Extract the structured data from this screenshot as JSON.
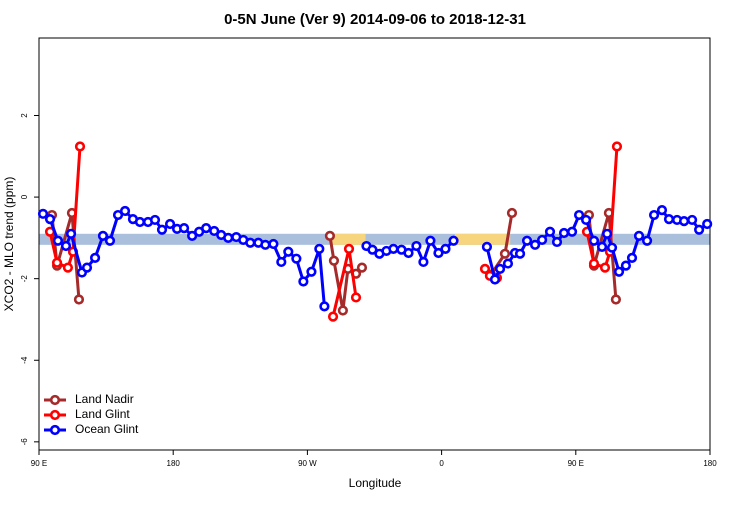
{
  "chart_data": {
    "type": "line",
    "title": "0-5N June (Ver 9)   2014-09-06 to 2018-12-31",
    "x_label": "Longitude",
    "y_label": "XCO2 - MLO trend (ppm)",
    "xlim": [
      90,
      540
    ],
    "xticks": [
      {
        "value": 90,
        "label": "90 E"
      },
      180,
      {
        "value": 270,
        "label": "90 W"
      },
      {
        "value": 360,
        "label": "0"
      },
      {
        "value": 450,
        "label": "90 E"
      },
      {
        "value": 540,
        "label": "180"
      }
    ],
    "ylim": [
      -6.2,
      3.9
    ],
    "yticks": [
      2,
      0,
      -2,
      -4,
      -6
    ],
    "legend": "bottom-left",
    "band": {
      "range": [
        -1.17,
        -0.9
      ],
      "color": "#a9bfdc"
    },
    "highlights": {
      "color": "#f7d57e",
      "ranges": [
        [
          285,
          309
        ],
        [
          369,
          406
        ]
      ]
    },
    "series": [
      {
        "name": "Land Nadir",
        "color": "#a52a2a",
        "x": [
          98.7,
          102.1,
          112.1,
          116.8,
          null,
          285.1,
          287.8,
          293.8,
          297.2,
          302.6,
          306.6,
          null,
          393.1,
          402.5,
          407.2,
          null,
          458.8,
          462.2,
          472.2,
          476.9
        ],
        "values": [
          -0.44,
          -1.68,
          -0.39,
          -2.51,
          null,
          -0.95,
          -1.56,
          -2.78,
          -1.76,
          -1.88,
          -1.73,
          null,
          -1.9,
          -1.39,
          -0.39,
          null,
          -0.44,
          -1.68,
          -0.39,
          -2.51
        ]
      },
      {
        "name": "Land Glint",
        "color": "#ff0000",
        "x": [
          97.4,
          102.1,
          109.4,
          112.8,
          117.5,
          null,
          287.2,
          297.9,
          302.6,
          null,
          389.1,
          392.4,
          397.1,
          null,
          457.5,
          462.2,
          469.6,
          472.9,
          477.6
        ],
        "values": [
          -0.85,
          -1.61,
          -1.73,
          -1.34,
          1.24,
          null,
          -2.93,
          -1.27,
          -2.46,
          null,
          -1.76,
          -1.93,
          -1.98,
          null,
          -0.85,
          -1.63,
          -1.73,
          -1.34,
          1.24
        ]
      },
      {
        "name": "Ocean Glint",
        "color": "#0000ff",
        "x": [
          92.7,
          97.4,
          102.7,
          108.1,
          111.5,
          118.8,
          122.2,
          127.6,
          132.9,
          137.6,
          143.0,
          147.7,
          153.0,
          157.7,
          163.1,
          167.8,
          172.5,
          177.9,
          182.6,
          187.3,
          192.7,
          197.4,
          202.1,
          207.5,
          212.2,
          216.9,
          222.3,
          227.0,
          231.7,
          237.1,
          241.8,
          247.2,
          252.5,
          257.2,
          262.6,
          267.3,
          272.7,
          278.0,
          281.4,
          null,
          309.6,
          313.6,
          318.3,
          323.0,
          327.7,
          333.1,
          337.8,
          343.1,
          347.8,
          352.5,
          357.9,
          362.6,
          368.0,
          null,
          390.4,
          395.8,
          399.2,
          404.5,
          409.2,
          412.6,
          417.3,
          422.7,
          427.4,
          432.7,
          437.4,
          442.1,
          447.5,
          452.2,
          456.9,
          462.2,
          467.6,
          471.0,
          474.3,
          479.0,
          483.6,
          487.7,
          492.4,
          497.8,
          502.5,
          507.8,
          512.5,
          517.9,
          522.6,
          528.0,
          532.7,
          538.1
        ],
        "values": [
          -0.41,
          -0.54,
          -1.07,
          -1.2,
          -0.9,
          -1.85,
          -1.73,
          -1.49,
          -0.95,
          -1.07,
          -0.44,
          -0.34,
          -0.54,
          -0.61,
          -0.61,
          -0.56,
          -0.8,
          -0.66,
          -0.78,
          -0.76,
          -0.95,
          -0.85,
          -0.76,
          -0.83,
          -0.93,
          -1.0,
          -0.98,
          -1.05,
          -1.12,
          -1.12,
          -1.17,
          -1.15,
          -1.59,
          -1.34,
          -1.51,
          -2.07,
          -1.83,
          -1.27,
          -2.68,
          null,
          -1.2,
          -1.29,
          -1.39,
          -1.32,
          -1.27,
          -1.29,
          -1.37,
          -1.2,
          -1.59,
          -1.07,
          -1.37,
          -1.27,
          -1.07,
          null,
          -1.22,
          -2.02,
          -1.76,
          -1.63,
          -1.37,
          -1.39,
          -1.07,
          -1.17,
          -1.05,
          -0.85,
          -1.1,
          -0.88,
          -0.85,
          -0.44,
          -0.56,
          -1.07,
          -1.22,
          -0.9,
          -1.24,
          -1.83,
          -1.68,
          -1.49,
          -0.95,
          -1.07,
          -0.44,
          -0.32,
          -0.54,
          -0.56,
          -0.59,
          -0.56,
          -0.8,
          -0.66
        ]
      }
    ]
  }
}
